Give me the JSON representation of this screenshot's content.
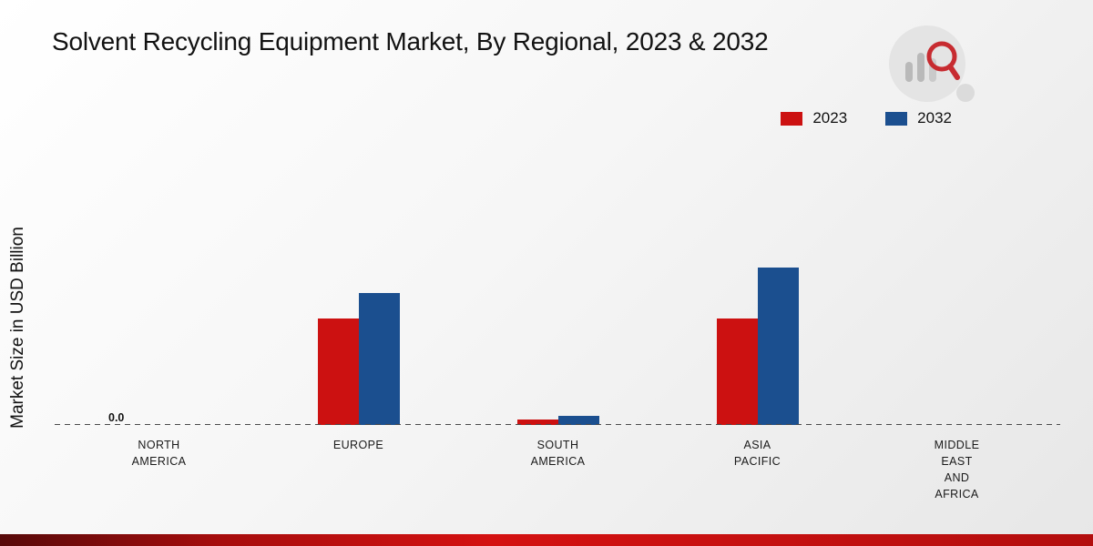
{
  "title": "Solvent Recycling Equipment Market, By Regional, 2023 & 2032",
  "ylabel": "Market Size in USD Billion",
  "zero_tick_label": "0.0",
  "colors": {
    "series_2023": "#cc1111",
    "series_2032": "#1b4f8f",
    "footer_accent": "#d41111"
  },
  "legend": [
    {
      "label": "2023",
      "color": "#cc1111"
    },
    {
      "label": "2032",
      "color": "#1b4f8f"
    }
  ],
  "chart_data": {
    "type": "bar",
    "title": "Solvent Recycling Equipment Market, By Regional, 2023 & 2032",
    "xlabel": "",
    "ylabel": "Market Size in USD Billion",
    "ylim": [
      0,
      3
    ],
    "grid": false,
    "legend_position": "top-right",
    "categories": [
      "North America",
      "Europe",
      "South America",
      "Asia Pacific",
      "Middle East and Africa"
    ],
    "category_label_lines": [
      [
        "NORTH",
        "AMERICA"
      ],
      [
        "EUROPE"
      ],
      [
        "SOUTH",
        "AMERICA"
      ],
      [
        "ASIA",
        "PACIFIC"
      ],
      [
        "MIDDLE",
        "EAST",
        "AND",
        "AFRICA"
      ]
    ],
    "series": [
      {
        "name": "2023",
        "color": "#cc1111",
        "values": [
          0.0,
          1.02,
          0.05,
          1.02,
          0.0
        ]
      },
      {
        "name": "2032",
        "color": "#1b4f8f",
        "values": [
          0.0,
          1.26,
          0.09,
          1.5,
          0.0
        ]
      }
    ]
  }
}
